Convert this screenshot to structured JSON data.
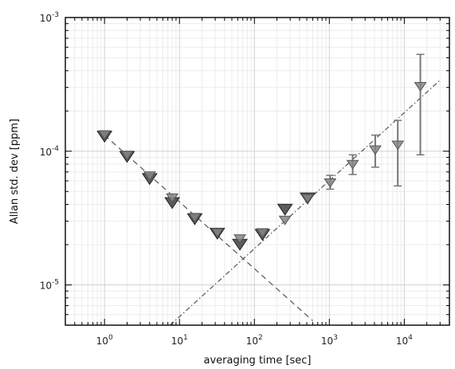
{
  "chart_data": {
    "type": "scatter",
    "xlabel": "averaging time [sec]",
    "ylabel": "Allan std. dev [ppm]",
    "xscale": "log",
    "yscale": "log",
    "xlim": [
      0.3,
      40000
    ],
    "ylim": [
      5e-06,
      0.001
    ],
    "x_ticks": [
      {
        "value": 1,
        "base": "10",
        "exp": "0"
      },
      {
        "value": 10,
        "base": "10",
        "exp": "1"
      },
      {
        "value": 100,
        "base": "10",
        "exp": "2"
      },
      {
        "value": 1000,
        "base": "10",
        "exp": "3"
      },
      {
        "value": 10000,
        "base": "10",
        "exp": "4"
      }
    ],
    "y_ticks": [
      {
        "value": 1e-05,
        "base": "10",
        "exp": "-5"
      },
      {
        "value": 0.0001,
        "base": "10",
        "exp": "-4"
      },
      {
        "value": 0.001,
        "base": "10",
        "exp": "-3"
      }
    ],
    "grid": true,
    "series": [
      {
        "marker": "triangle-down",
        "color": "#4a4a4a",
        "points": [
          {
            "x": 1,
            "y": 0.000132
          },
          {
            "x": 2,
            "y": 9.3e-05
          },
          {
            "x": 4,
            "y": 6.35e-05
          },
          {
            "x": 8,
            "y": 4.2e-05
          },
          {
            "x": 16,
            "y": 3.18e-05
          },
          {
            "x": 32,
            "y": 2.48e-05
          },
          {
            "x": 64,
            "y": 2.05e-05
          },
          {
            "x": 128,
            "y": 2.43e-05
          },
          {
            "x": 256,
            "y": 3.75e-05
          },
          {
            "x": 512,
            "y": 4.55e-05
          }
        ]
      },
      {
        "marker": "triangle-down",
        "color": "#858585",
        "points": [
          {
            "x": 1,
            "y": 0.000135
          },
          {
            "x": 2,
            "y": 9.5e-05
          },
          {
            "x": 4,
            "y": 6.65e-05
          },
          {
            "x": 8,
            "y": 4.55e-05
          },
          {
            "x": 16,
            "y": 3.25e-05
          },
          {
            "x": 32,
            "y": 2.5e-05
          },
          {
            "x": 64,
            "y": 2.25e-05
          },
          {
            "x": 128,
            "y": 2.5e-05
          },
          {
            "x": 256,
            "y": 3.1e-05
          },
          {
            "x": 512,
            "y": 4.5e-05
          },
          {
            "x": 1024,
            "y": 5.9e-05,
            "err": [
              5.2e-05,
              6.6e-05
            ]
          },
          {
            "x": 2048,
            "y": 8.1e-05,
            "err": [
              6.7e-05,
              9.4e-05
            ]
          },
          {
            "x": 4096,
            "y": 0.000104,
            "err": [
              7.6e-05,
              0.000132
            ]
          },
          {
            "x": 8192,
            "y": 0.000113,
            "err": [
              5.5e-05,
              0.00017
            ]
          },
          {
            "x": 16384,
            "y": 0.00031,
            "err": [
              9.4e-05,
              0.00053
            ]
          }
        ]
      }
    ],
    "fit_lines": [
      {
        "name_shown": false,
        "style": "dashed",
        "points": [
          {
            "x": 1,
            "y": 0.000132
          },
          {
            "x": 600,
            "y": 5.4e-06
          }
        ]
      },
      {
        "name_shown": false,
        "style": "dash-dot",
        "points": [
          {
            "x": 7.5,
            "y": 5e-06
          },
          {
            "x": 30000,
            "y": 0.00034
          }
        ]
      }
    ]
  }
}
